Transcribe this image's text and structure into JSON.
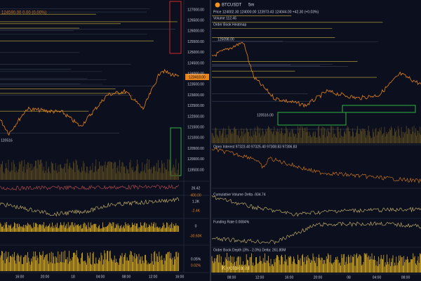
{
  "left_panel": {
    "header": "124590.00  0.00 (0.00%)",
    "price_axis": [
      "127000.00",
      "126500.00",
      "126000.00",
      "125500.00",
      "125000.00",
      "124500.00",
      "124000.00",
      "123500.00",
      "123000.00",
      "122500.00",
      "122000.00",
      "121500.00",
      "121000.00",
      "120500.00",
      "120000.00",
      "119500.00"
    ],
    "price_tag": "123418.00",
    "left_marker": "120516",
    "indicator_labels": [
      "26.42",
      "400.00",
      "1.2K",
      "-2.4K",
      "0",
      "-30.60K",
      "0.05%",
      "0.02%"
    ],
    "time_axis": [
      "16:00",
      "20:00",
      "18",
      "04:00",
      "08:00",
      "12:00",
      "16:00"
    ]
  },
  "right_panel": {
    "symbol": "BTCUSDT",
    "interval": "5m",
    "price_line": "Price  124002.30  124000.00  123973.43  124044.00  +42.30 (+0.03%)",
    "volume_line": "Volume  112.45",
    "heatmap_title": "Order Book Heatmap",
    "high_label": "125098.00",
    "low_label": "120516.00",
    "open_interest": "Open Interest  97323.40  97325.40  97308.83  97306.83",
    "cvd": "Cumulative Volume Delta  -934.74",
    "funding": "Funding Rate  0.0084%",
    "depth": "Order Book Depth (3% - 2.0%)  Delta: 261.80M",
    "logo": "Kiyotaka.ai",
    "time_axis": [
      "08:00",
      "12:00",
      "16:00",
      "20:00",
      "08",
      "04:00",
      "08:00"
    ]
  }
}
